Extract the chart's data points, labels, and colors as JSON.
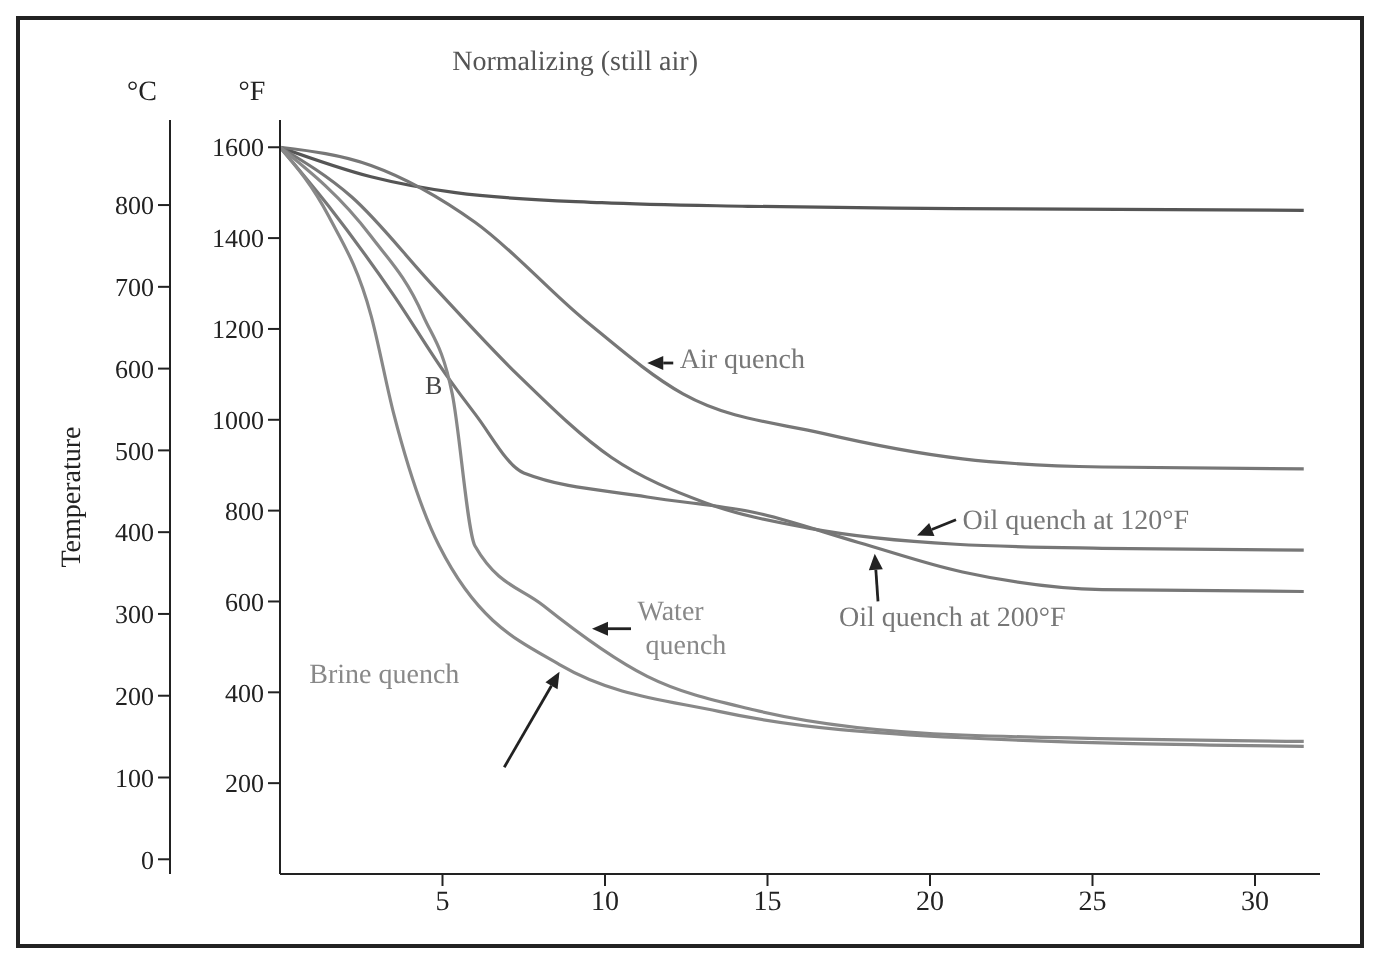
{
  "chart_data": {
    "type": "line",
    "ylabel": "°F",
    "y2label": "°C",
    "xlim": [
      0,
      32
    ],
    "xticks": [
      5,
      10,
      15,
      20,
      25,
      30
    ],
    "ylim": [
      0,
      1660
    ],
    "yticks": [
      200,
      400,
      600,
      800,
      1000,
      1200,
      1400,
      1600
    ],
    "y2lim": [
      -18,
      904
    ],
    "y2ticks": [
      0,
      100,
      200,
      300,
      400,
      500,
      600,
      700,
      800
    ],
    "grid": false,
    "legend": false,
    "marker": "none",
    "line_style": "solid",
    "annotations": [
      "Temperature",
      {
        "text": "B",
        "x": 5.3,
        "y": 1057
      }
    ],
    "series": [
      {
        "name": "Normalizing (still air)",
        "color": "#555555",
        "x": [
          0,
          2.8,
          5.4,
          9.9,
          14.4,
          20.8,
          31.5
        ],
        "values": [
          1600,
          1535,
          1500,
          1478,
          1470,
          1465,
          1461
        ]
      },
      {
        "name": "Air quench",
        "color": "#777777",
        "x": [
          0,
          2.8,
          6.0,
          9.4,
          12.4,
          16.7,
          21.0,
          25.3,
          31.5
        ],
        "values": [
          1600,
          1560,
          1435,
          1218,
          1057,
          970,
          914,
          896,
          892
        ]
      },
      {
        "name": "Oil quench at 120°F",
        "color": "#777777",
        "x": [
          0,
          2.2,
          4.7,
          7.3,
          10.2,
          13.1,
          16.3,
          20.8,
          25.3,
          31.5
        ],
        "values": [
          1600,
          1491,
          1296,
          1100,
          917,
          817,
          761,
          726,
          717,
          713
        ]
      },
      {
        "name": "Oil quench at 200°F",
        "color": "#777777",
        "x": [
          0,
          1.5,
          3.5,
          5.1,
          6.0,
          7.5,
          11.3,
          14.6,
          17.8,
          21.0,
          25.3,
          31.5
        ],
        "values": [
          1600,
          1470,
          1274,
          1100,
          1013,
          883,
          830,
          796,
          730,
          665,
          626,
          622
        ]
      },
      {
        "name": "Water quench",
        "color": "#888888",
        "x": [
          0,
          2.8,
          4.4,
          5.3,
          6.0,
          8.1,
          11.3,
          14.6,
          21.0,
          31.5
        ],
        "values": [
          1600,
          1404,
          1230,
          1057,
          722,
          591,
          435,
          361,
          306,
          292
        ]
      },
      {
        "name": "Brine quench",
        "color": "#888888",
        "x": [
          0,
          1.5,
          2.8,
          3.5,
          4.9,
          8.6,
          13.5,
          21.0,
          31.5
        ],
        "values": [
          1600,
          1448,
          1230,
          1013,
          722,
          461,
          358,
          300,
          281
        ]
      }
    ]
  }
}
